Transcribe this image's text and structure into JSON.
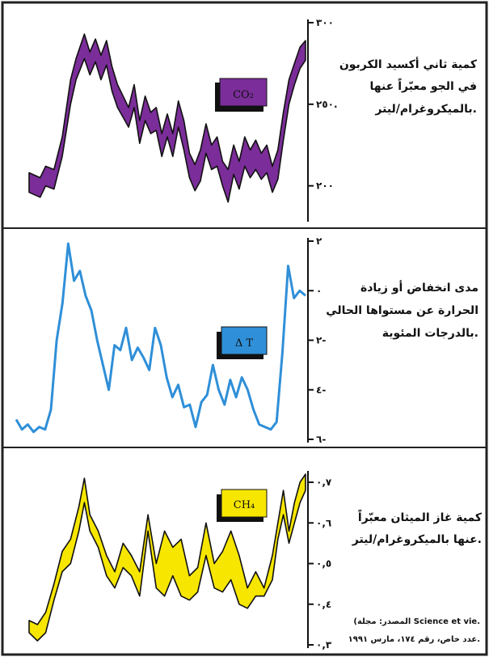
{
  "source": {
    "line1": "(المصدر: مجلة Science et vie.",
    "line2": "عدد خاص، رقم ١٧٤، مارس ١٩٩١."
  },
  "chart_data": [
    {
      "type": "area",
      "badge": "CO₂",
      "badge_color": "#7b2d99",
      "fill_color": "#7b2d99",
      "label_lines": [
        "كمية ثاني أكسيد الكربون",
        "في الجو معبّراً عنها",
        "بالميكروغرام/ليتر."
      ],
      "ylim": [
        180,
        300
      ],
      "y_ticks": [
        {
          "v": 300,
          "t": "٣٠٠"
        },
        {
          "v": 250,
          "t": "٢٥٠."
        },
        {
          "v": 200,
          "t": "٢٠٠"
        }
      ],
      "x": [
        0,
        0.04,
        0.06,
        0.09,
        0.12,
        0.15,
        0.17,
        0.2,
        0.22,
        0.24,
        0.26,
        0.28,
        0.3,
        0.32,
        0.34,
        0.36,
        0.38,
        0.4,
        0.42,
        0.44,
        0.46,
        0.48,
        0.5,
        0.52,
        0.54,
        0.56,
        0.58,
        0.6,
        0.62,
        0.64,
        0.66,
        0.68,
        0.7,
        0.72,
        0.74,
        0.76,
        0.78,
        0.8,
        0.82,
        0.84,
        0.86,
        0.88,
        0.9,
        0.92,
        0.94,
        0.96,
        0.98,
        1.0
      ],
      "upper": [
        208,
        205,
        212,
        210,
        230,
        265,
        278,
        293,
        282,
        290,
        280,
        289,
        273,
        262,
        255,
        248,
        262,
        240,
        255,
        245,
        248,
        232,
        244,
        232,
        252,
        240,
        220,
        213,
        222,
        238,
        225,
        230,
        215,
        210,
        225,
        215,
        230,
        222,
        228,
        220,
        225,
        212,
        222,
        245,
        265,
        275,
        285,
        289
      ],
      "lower": [
        196,
        193,
        200,
        198,
        218,
        250,
        265,
        278,
        268,
        276,
        265,
        274,
        258,
        248,
        242,
        236,
        248,
        226,
        240,
        232,
        234,
        218,
        230,
        218,
        236,
        222,
        205,
        197,
        203,
        220,
        210,
        212,
        200,
        190,
        207,
        198,
        212,
        205,
        210,
        204,
        208,
        196,
        204,
        228,
        250,
        262,
        272,
        277
      ]
    },
    {
      "type": "line",
      "badge": "Δ T",
      "badge_color": "#2f8fd8",
      "line_color": "#2f8fd8",
      "label_lines": [
        "مدى انخفاض أو زيادة",
        "الحرارة عن مستواها الحالي",
        "بالدرجات المئوية."
      ],
      "ylim": [
        -6,
        2
      ],
      "y_ticks": [
        {
          "v": 2,
          "t": "٢"
        },
        {
          "v": 0,
          "t": "٠"
        },
        {
          "v": -2,
          "t": "٢-"
        },
        {
          "v": -4,
          "t": "٤-"
        },
        {
          "v": -6,
          "t": "٦-"
        }
      ],
      "x": [
        0,
        0.02,
        0.04,
        0.06,
        0.08,
        0.1,
        0.12,
        0.14,
        0.16,
        0.18,
        0.2,
        0.22,
        0.24,
        0.26,
        0.28,
        0.3,
        0.32,
        0.34,
        0.36,
        0.38,
        0.4,
        0.42,
        0.44,
        0.46,
        0.48,
        0.5,
        0.52,
        0.54,
        0.56,
        0.58,
        0.6,
        0.62,
        0.64,
        0.66,
        0.68,
        0.7,
        0.72,
        0.74,
        0.76,
        0.78,
        0.8,
        0.82,
        0.84,
        0.86,
        0.88,
        0.9,
        0.92,
        0.94,
        0.96,
        0.98,
        1.0
      ],
      "y": [
        -5.2,
        -5.6,
        -5.4,
        -5.7,
        -5.5,
        -5.6,
        -4.8,
        -2.0,
        -0.5,
        1.9,
        0.4,
        0.8,
        -0.2,
        -0.8,
        -2.0,
        -3.0,
        -4.0,
        -2.2,
        -2.4,
        -1.5,
        -2.8,
        -2.3,
        -2.7,
        -3.2,
        -1.5,
        -2.2,
        -3.5,
        -4.3,
        -3.8,
        -4.7,
        -4.6,
        -5.5,
        -4.5,
        -4.2,
        -3.0,
        -4.0,
        -4.6,
        -3.6,
        -4.3,
        -3.5,
        -4.0,
        -4.8,
        -5.4,
        -5.5,
        -5.6,
        -5.3,
        -2.5,
        1.0,
        -0.3,
        0.0,
        -0.2
      ]
    },
    {
      "type": "area",
      "badge": "CH₄",
      "badge_color": "#f6e600",
      "fill_color": "#f6e600",
      "label_lines": [
        "كمية غاز الميثان معبّراً",
        "عنها بالميكروغرام/ليتر."
      ],
      "ylim": [
        0.3,
        0.72
      ],
      "y_ticks": [
        {
          "v": 0.7,
          "t": "٠,٧"
        },
        {
          "v": 0.6,
          "t": "٠,٦"
        },
        {
          "v": 0.5,
          "t": "٠,٥"
        },
        {
          "v": 0.4,
          "t": "٠,٤"
        },
        {
          "v": 0.3,
          "t": "٠,٣"
        }
      ],
      "x": [
        0,
        0.03,
        0.06,
        0.09,
        0.12,
        0.15,
        0.18,
        0.2,
        0.22,
        0.25,
        0.28,
        0.31,
        0.34,
        0.37,
        0.4,
        0.43,
        0.46,
        0.49,
        0.52,
        0.55,
        0.58,
        0.61,
        0.64,
        0.67,
        0.7,
        0.73,
        0.76,
        0.79,
        0.82,
        0.85,
        0.88,
        0.9,
        0.92,
        0.94,
        0.96,
        0.98,
        1.0
      ],
      "upper": [
        0.36,
        0.35,
        0.38,
        0.45,
        0.53,
        0.56,
        0.64,
        0.71,
        0.62,
        0.58,
        0.52,
        0.48,
        0.55,
        0.52,
        0.48,
        0.62,
        0.5,
        0.58,
        0.54,
        0.56,
        0.47,
        0.49,
        0.6,
        0.5,
        0.53,
        0.58,
        0.52,
        0.44,
        0.48,
        0.44,
        0.52,
        0.6,
        0.68,
        0.58,
        0.65,
        0.7,
        0.72
      ],
      "lower": [
        0.33,
        0.31,
        0.33,
        0.41,
        0.48,
        0.5,
        0.58,
        0.65,
        0.58,
        0.54,
        0.47,
        0.44,
        0.49,
        0.47,
        0.42,
        0.58,
        0.44,
        0.42,
        0.47,
        0.42,
        0.41,
        0.43,
        0.52,
        0.44,
        0.43,
        0.46,
        0.4,
        0.39,
        0.42,
        0.42,
        0.46,
        0.56,
        0.62,
        0.55,
        0.6,
        0.65,
        0.68
      ]
    }
  ]
}
